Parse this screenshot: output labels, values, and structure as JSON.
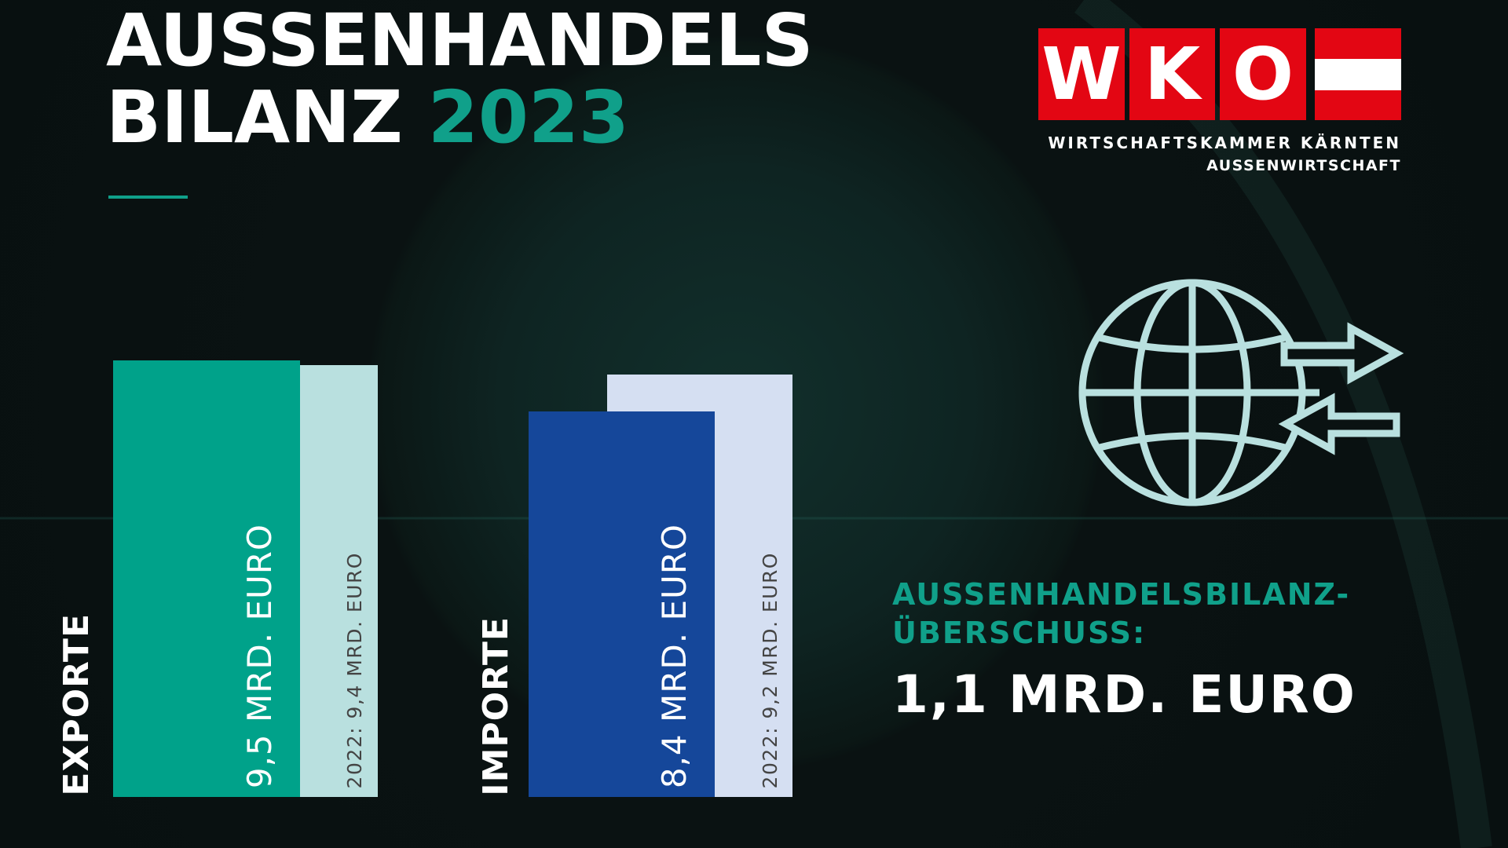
{
  "title": {
    "line1": "AUSSENHANDELS",
    "line2": "BILANZ",
    "year": "2023"
  },
  "logo": {
    "letters": [
      "W",
      "K",
      "O"
    ],
    "line1": "WIRTSCHAFTSKAMMER KÄRNTEN",
    "line2": "AUSSENWIRTSCHAFT",
    "red": "#e30613"
  },
  "chart_data": {
    "type": "bar",
    "categories": [
      "EXPORTE",
      "IMPORTE"
    ],
    "unit": "Mrd. Euro",
    "series": [
      {
        "year": "2023",
        "values": [
          9.5,
          8.4
        ],
        "labels": [
          "9,5 MRD. EURO",
          "8,4 MRD. EURO"
        ],
        "colors": [
          "#00a28a",
          "#15479a"
        ]
      },
      {
        "year": "2022",
        "values": [
          9.4,
          9.2
        ],
        "labels": [
          "2022: 9,4 MRD. EURO",
          "2022: 9,2 MRD. EURO"
        ],
        "colors": [
          "#b9e0df",
          "#d5dff2"
        ]
      }
    ]
  },
  "summary": {
    "label1": "AUSSENHANDELSBILANZ-",
    "label2": "ÜBERSCHUSS:",
    "value": "1,1 MRD. EURO"
  },
  "icons": {
    "trade": "globe-with-arrows-icon",
    "color": "#b9e0df"
  }
}
